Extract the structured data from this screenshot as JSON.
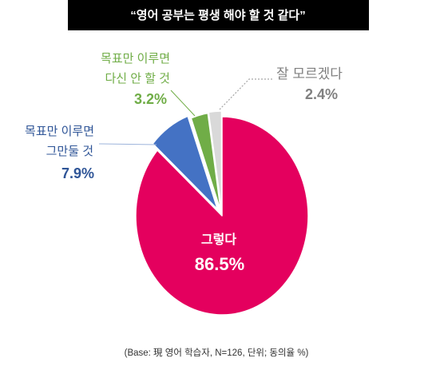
{
  "chart_data": {
    "type": "pie",
    "title": "“영어 공부는 평생 해야 할 것 같다”",
    "slices": [
      {
        "label_lines": [
          "그렇다"
        ],
        "value": 86.5,
        "value_label": "86.5%",
        "color": "#E4005E",
        "label_color": "#FFFFFF",
        "exploded": false
      },
      {
        "label_lines": [
          "목표만 이루면",
          "그만둘 것"
        ],
        "value": 7.9,
        "value_label": "7.9%",
        "color": "#4472C4",
        "label_color": "#2F5597",
        "exploded": true
      },
      {
        "label_lines": [
          "목표만 이루면",
          "다신 안 할 것"
        ],
        "value": 3.2,
        "value_label": "3.2%",
        "color": "#70AD47",
        "label_color": "#70AD47",
        "exploded": true
      },
      {
        "label_lines": [
          "잘 모르겠다"
        ],
        "value": 2.4,
        "value_label": "2.4%",
        "color": "#D9D9D9",
        "label_color": "#808080",
        "exploded": true
      }
    ],
    "note": "(Base: 現 영어 학습자, N=126, 단위; 동의율 %)"
  }
}
